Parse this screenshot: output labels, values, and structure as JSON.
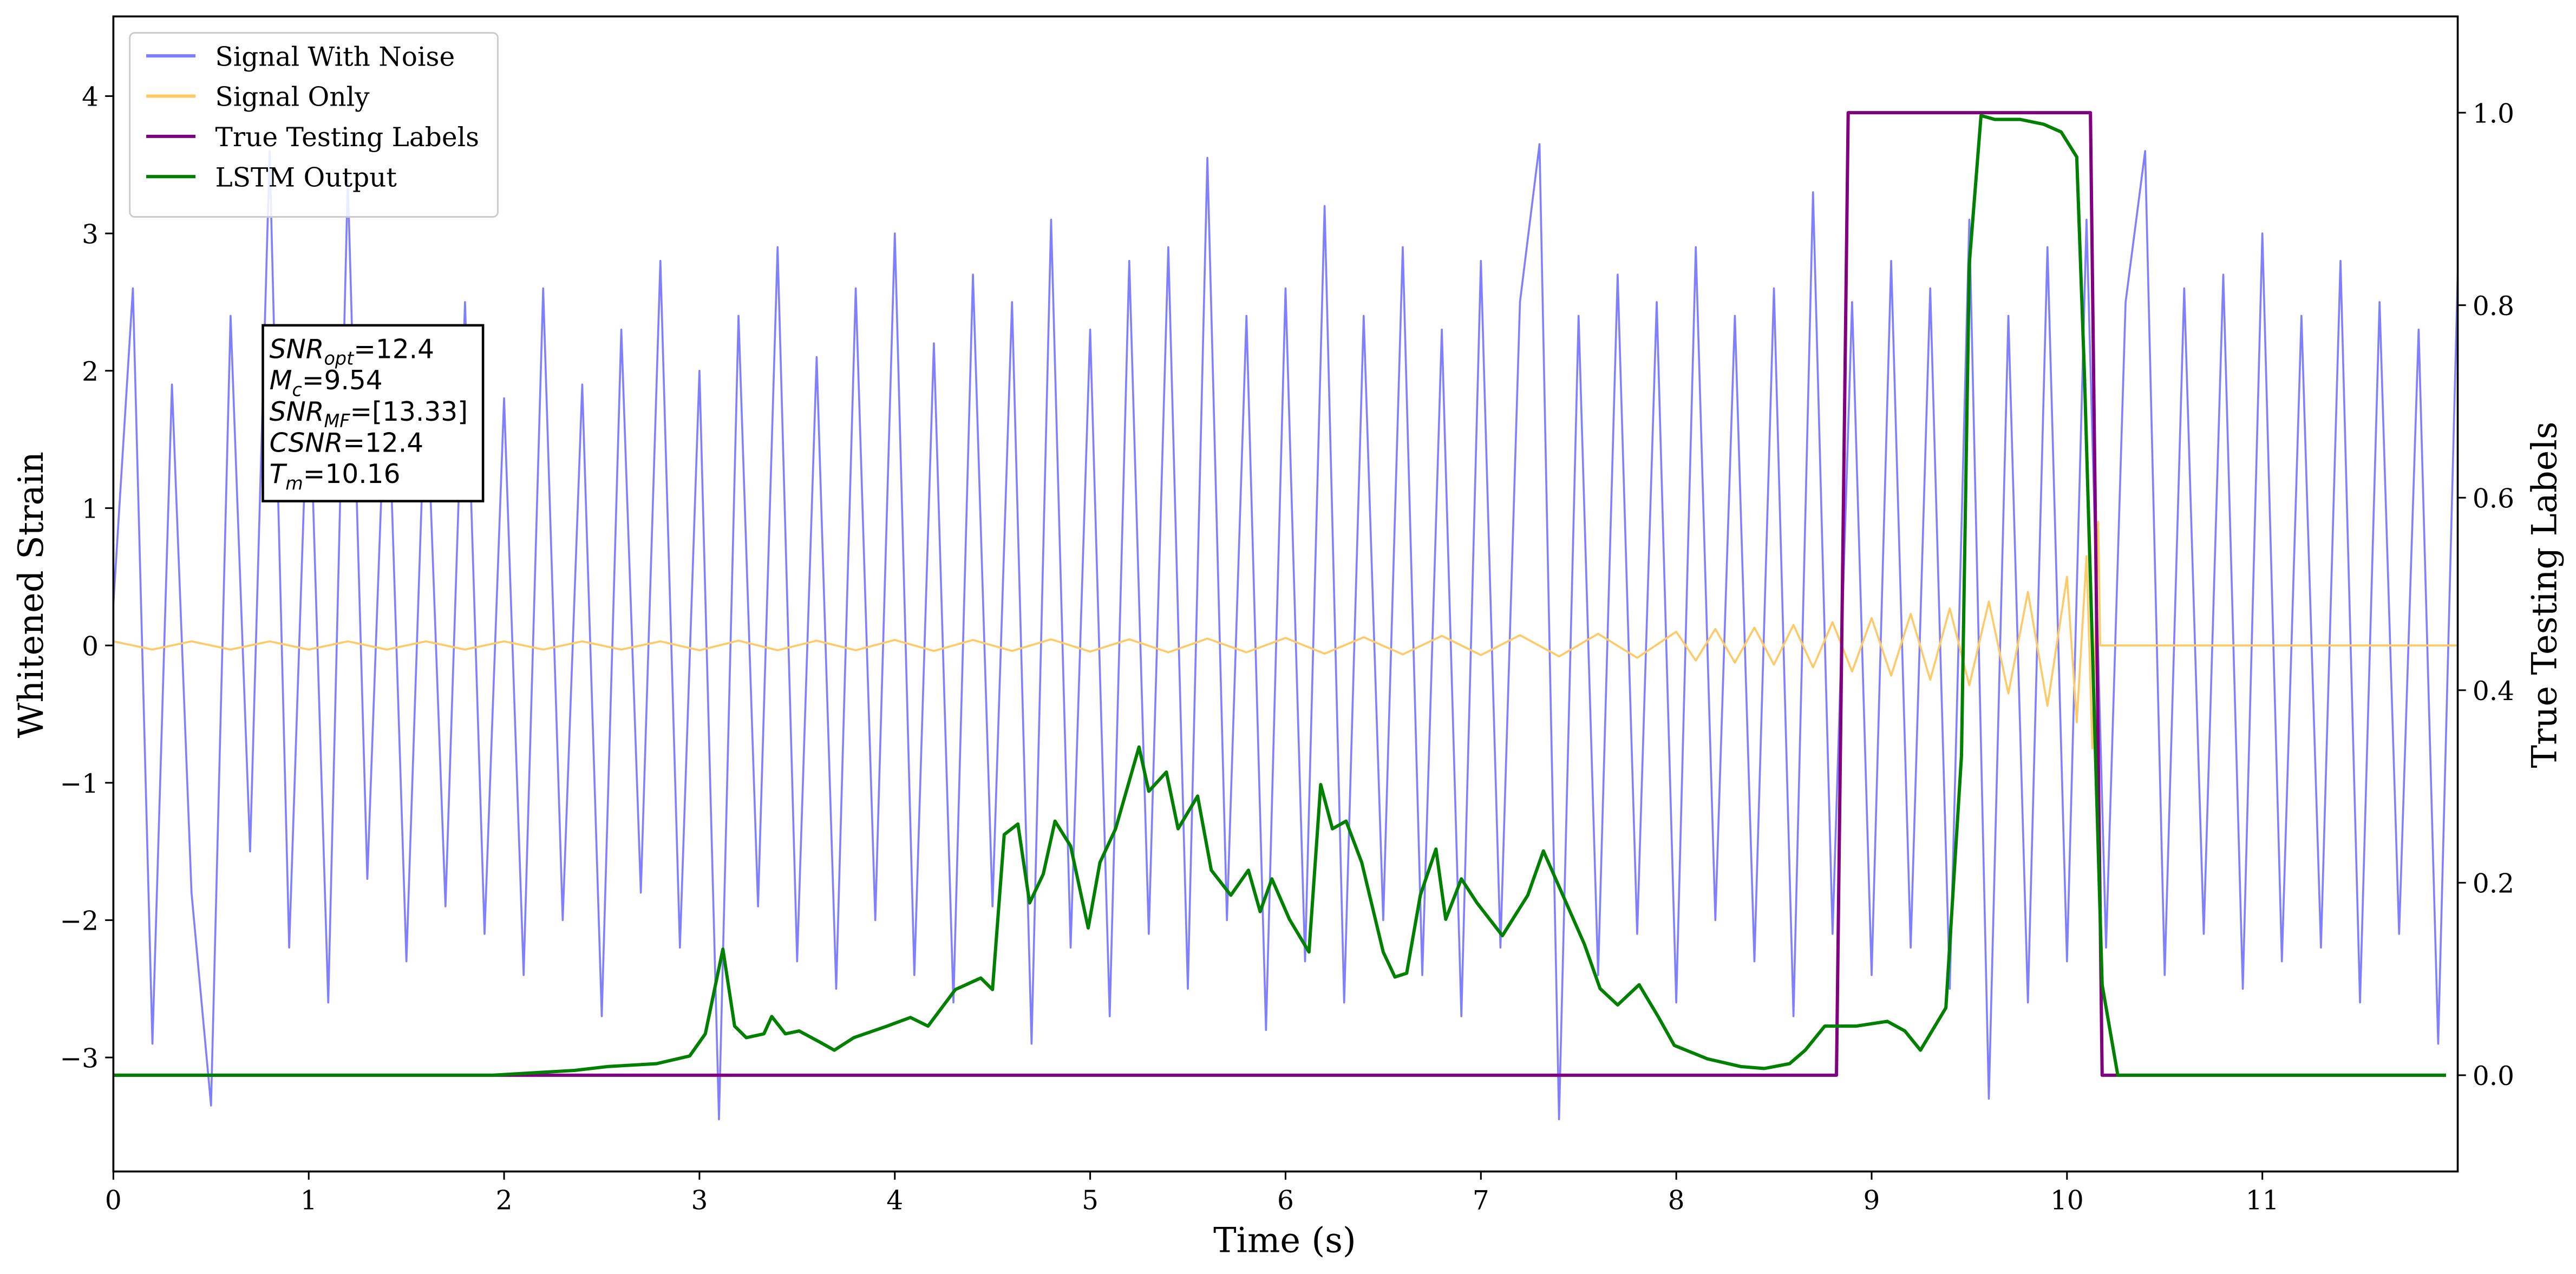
{
  "chart_data": {
    "type": "line",
    "xlabel": "Time (s)",
    "ylabel": "Whitened Strain",
    "y2label": "True Testing Labels",
    "xlim": [
      0,
      12.0
    ],
    "ylim": [
      -3.83,
      4.58
    ],
    "y2lim": [
      -0.1,
      1.1
    ],
    "xticks": [
      0,
      1,
      2,
      3,
      4,
      5,
      6,
      7,
      8,
      9,
      10,
      11
    ],
    "yticks": [
      {
        "value": -3,
        "label": "−3"
      },
      {
        "value": -2,
        "label": "−2"
      },
      {
        "value": -1,
        "label": "−1"
      },
      0,
      1,
      2,
      3,
      4
    ],
    "y2ticks": [
      {
        "value": 0,
        "label": "0.0"
      },
      0.2,
      0.4,
      0.6,
      0.8,
      {
        "value": 1,
        "label": "1.0"
      }
    ],
    "legend": "upper left",
    "series": [
      {
        "name": "Signal With Noise",
        "color": "#8080ff",
        "axis": "y",
        "x": [
          0,
          0.1,
          0.2,
          0.3,
          0.4,
          0.5,
          0.6,
          0.7,
          0.8,
          0.9,
          1.0,
          1.1,
          1.2,
          1.3,
          1.4,
          1.5,
          1.6,
          1.7,
          1.8,
          1.9,
          2.0,
          2.1,
          2.2,
          2.3,
          2.4,
          2.5,
          2.6,
          2.7,
          2.8,
          2.9,
          3.0,
          3.1,
          3.2,
          3.3,
          3.4,
          3.5,
          3.6,
          3.7,
          3.8,
          3.9,
          4.0,
          4.1,
          4.2,
          4.3,
          4.4,
          4.5,
          4.6,
          4.7,
          4.8,
          4.9,
          5.0,
          5.1,
          5.2,
          5.3,
          5.4,
          5.5,
          5.6,
          5.7,
          5.8,
          5.9,
          6.0,
          6.1,
          6.2,
          6.3,
          6.4,
          6.5,
          6.6,
          6.7,
          6.8,
          6.9,
          7.0,
          7.1,
          7.2,
          7.3,
          7.4,
          7.5,
          7.6,
          7.7,
          7.8,
          7.9,
          8.0,
          8.1,
          8.2,
          8.3,
          8.4,
          8.5,
          8.6,
          8.7,
          8.8,
          8.9,
          9.0,
          9.1,
          9.2,
          9.3,
          9.4,
          9.5,
          9.6,
          9.7,
          9.8,
          9.9,
          10.0,
          10.1,
          10.2,
          10.3,
          10.4,
          10.5,
          10.6,
          10.7,
          10.8,
          10.9,
          11.0,
          11.1,
          11.2,
          11.3,
          11.4,
          11.5,
          11.6,
          11.7,
          11.8,
          11.9,
          12.0
        ],
        "values": [
          0.3,
          2.6,
          -2.9,
          1.9,
          -1.8,
          -3.35,
          2.4,
          -1.5,
          3.6,
          -2.2,
          2.1,
          -2.6,
          3.4,
          -1.7,
          2.2,
          -2.3,
          2.0,
          -1.9,
          2.5,
          -2.1,
          1.8,
          -2.4,
          2.6,
          -2.0,
          1.9,
          -2.7,
          2.3,
          -1.8,
          2.8,
          -2.2,
          2.0,
          -3.45,
          2.4,
          -1.9,
          2.9,
          -2.3,
          2.1,
          -2.5,
          2.6,
          -2.0,
          3.0,
          -2.4,
          2.2,
          -2.6,
          2.7,
          -1.9,
          2.5,
          -2.9,
          3.1,
          -2.2,
          2.3,
          -2.7,
          2.8,
          -2.1,
          2.9,
          -2.5,
          3.55,
          -2.0,
          2.4,
          -2.8,
          2.6,
          -2.3,
          3.2,
          -2.6,
          2.4,
          -2.0,
          2.9,
          -2.4,
          2.3,
          -2.7,
          2.8,
          -2.2,
          2.5,
          3.65,
          -3.45,
          2.4,
          -2.4,
          2.7,
          -2.1,
          2.5,
          -2.6,
          2.9,
          -2.0,
          2.4,
          -2.3,
          2.6,
          -2.7,
          3.3,
          -2.1,
          2.5,
          -2.4,
          2.8,
          -2.2,
          2.6,
          -2.5,
          3.1,
          -3.3,
          2.4,
          -2.6,
          2.9,
          -2.3,
          3.1,
          -2.2,
          2.5,
          3.6,
          -2.4,
          2.6,
          -2.1,
          2.7,
          -2.5,
          3.0,
          -2.3,
          2.4,
          -2.2,
          2.8,
          -2.6,
          2.5,
          -2.1,
          2.3,
          -2.9,
          2.7
        ]
      },
      {
        "name": "Signal Only",
        "color": "#ffc966",
        "axis": "y",
        "x": [
          0,
          0.2,
          0.4,
          0.6,
          0.8,
          1.0,
          1.2,
          1.4,
          1.6,
          1.8,
          2.0,
          2.2,
          2.4,
          2.6,
          2.8,
          3.0,
          3.2,
          3.4,
          3.6,
          3.8,
          4.0,
          4.2,
          4.4,
          4.6,
          4.8,
          5.0,
          5.2,
          5.4,
          5.6,
          5.8,
          6.0,
          6.2,
          6.4,
          6.6,
          6.8,
          7.0,
          7.2,
          7.4,
          7.6,
          7.8,
          8.0,
          8.1,
          8.2,
          8.3,
          8.4,
          8.5,
          8.6,
          8.7,
          8.8,
          8.9,
          9.0,
          9.1,
          9.2,
          9.3,
          9.4,
          9.5,
          9.6,
          9.7,
          9.8,
          9.9,
          10.0,
          10.05,
          10.1,
          10.13,
          10.16,
          10.17,
          12.0
        ],
        "values": [
          0.03,
          -0.03,
          0.03,
          -0.03,
          0.03,
          -0.03,
          0.03,
          -0.03,
          0.03,
          -0.03,
          0.03,
          -0.03,
          0.03,
          -0.03,
          0.03,
          -0.035,
          0.035,
          -0.035,
          0.035,
          -0.035,
          0.04,
          -0.04,
          0.04,
          -0.04,
          0.045,
          -0.045,
          0.045,
          -0.05,
          0.05,
          -0.05,
          0.055,
          -0.06,
          0.06,
          -0.065,
          0.07,
          -0.07,
          0.075,
          -0.08,
          0.085,
          -0.09,
          0.1,
          -0.11,
          0.12,
          -0.125,
          0.13,
          -0.14,
          0.15,
          -0.16,
          0.17,
          -0.19,
          0.2,
          -0.22,
          0.23,
          -0.25,
          0.27,
          -0.29,
          0.32,
          -0.35,
          0.39,
          -0.44,
          0.5,
          -0.56,
          0.65,
          -0.75,
          0.9,
          0,
          0
        ]
      },
      {
        "name": "True Testing Labels",
        "color": "#800080",
        "axis": "y2",
        "x": [
          0,
          8.82,
          8.88,
          10.12,
          10.18,
          11.94
        ],
        "values": [
          0,
          0,
          1,
          1,
          0,
          0
        ]
      },
      {
        "name": "LSTM Output",
        "color": "#008000",
        "axis": "y2",
        "x": [
          0,
          1.94,
          2.36,
          2.53,
          2.78,
          2.95,
          3.03,
          3.12,
          3.18,
          3.24,
          3.33,
          3.37,
          3.44,
          3.51,
          3.62,
          3.69,
          3.79,
          3.96,
          4.08,
          4.17,
          4.31,
          4.44,
          4.5,
          4.56,
          4.63,
          4.69,
          4.76,
          4.82,
          4.9,
          4.99,
          5.05,
          5.13,
          5.25,
          5.3,
          5.39,
          5.45,
          5.55,
          5.62,
          5.72,
          5.81,
          5.87,
          5.93,
          6.02,
          6.12,
          6.18,
          6.24,
          6.31,
          6.39,
          6.5,
          6.56,
          6.62,
          6.69,
          6.77,
          6.82,
          6.9,
          6.98,
          7.11,
          7.24,
          7.32,
          7.4,
          7.53,
          7.61,
          7.7,
          7.81,
          7.91,
          7.99,
          8.16,
          8.33,
          8.45,
          8.58,
          8.66,
          8.76,
          8.92,
          9.08,
          9.17,
          9.25,
          9.38,
          9.46,
          9.5,
          9.56,
          9.63,
          9.76,
          9.88,
          9.97,
          10.05,
          10.09,
          10.18,
          10.26,
          11.94
        ],
        "values": [
          0,
          0,
          0.005,
          0.009,
          0.012,
          0.02,
          0.043,
          0.131,
          0.051,
          0.039,
          0.043,
          0.061,
          0.043,
          0.046,
          0.034,
          0.026,
          0.039,
          0.051,
          0.06,
          0.051,
          0.089,
          0.101,
          0.089,
          0.25,
          0.261,
          0.179,
          0.209,
          0.264,
          0.238,
          0.153,
          0.221,
          0.256,
          0.341,
          0.295,
          0.315,
          0.256,
          0.29,
          0.213,
          0.187,
          0.213,
          0.17,
          0.204,
          0.162,
          0.128,
          0.302,
          0.256,
          0.264,
          0.221,
          0.128,
          0.102,
          0.106,
          0.187,
          0.235,
          0.162,
          0.204,
          0.179,
          0.145,
          0.187,
          0.233,
          0.196,
          0.136,
          0.09,
          0.073,
          0.094,
          0.06,
          0.031,
          0.017,
          0.009,
          0.007,
          0.012,
          0.026,
          0.051,
          0.051,
          0.056,
          0.046,
          0.026,
          0.07,
          0.332,
          0.843,
          0.997,
          0.993,
          0.993,
          0.988,
          0.98,
          0.954,
          0.724,
          0.094,
          0,
          0
        ]
      }
    ],
    "annotation": [
      {
        "symbol": "SNR",
        "subscript": "opt",
        "text": "=12.4"
      },
      {
        "symbol": "M",
        "subscript": "c",
        "text": "=9.54"
      },
      {
        "symbol": "SNR",
        "subscript": "MF",
        "text": "=[13.33]"
      },
      {
        "symbol": "CSNR",
        "text": "=12.4"
      },
      {
        "symbol": "T",
        "subscript": "m",
        "text": "=10.16"
      }
    ]
  }
}
